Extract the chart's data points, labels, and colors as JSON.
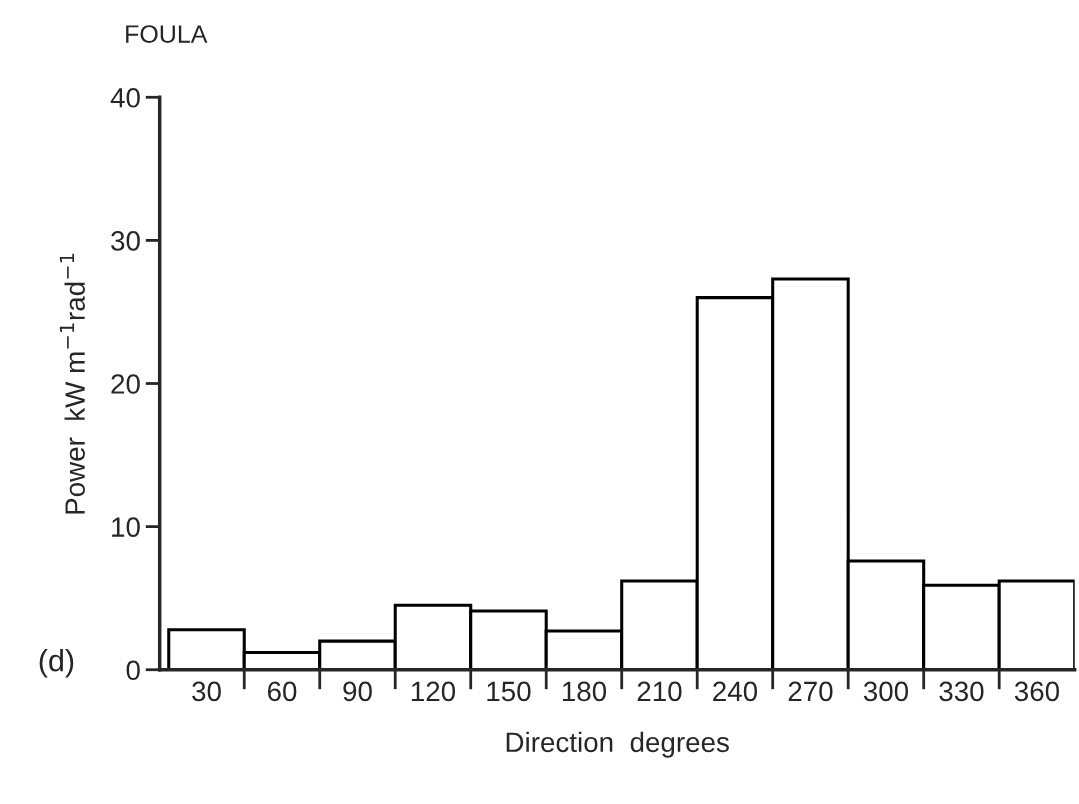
{
  "chart_data": {
    "type": "bar",
    "title": "FOULA",
    "xlabel": "Direction  degrees",
    "ylabel": "Power  kW m$^{−1}$rad$^{−1}$",
    "categories": [
      "30",
      "60",
      "90",
      "120",
      "150",
      "180",
      "210",
      "240",
      "270",
      "300",
      "330",
      "360"
    ],
    "values": [
      2.8,
      1.2,
      2.0,
      4.5,
      4.1,
      2.7,
      6.2,
      26.0,
      27.3,
      7.6,
      5.9,
      6.2
    ],
    "color": "#ffffff",
    "ylim": [
      0,
      40
    ],
    "yticks": [
      0,
      10,
      20,
      30,
      40
    ],
    "grid": false,
    "annotations": [
      "(d)"
    ]
  }
}
